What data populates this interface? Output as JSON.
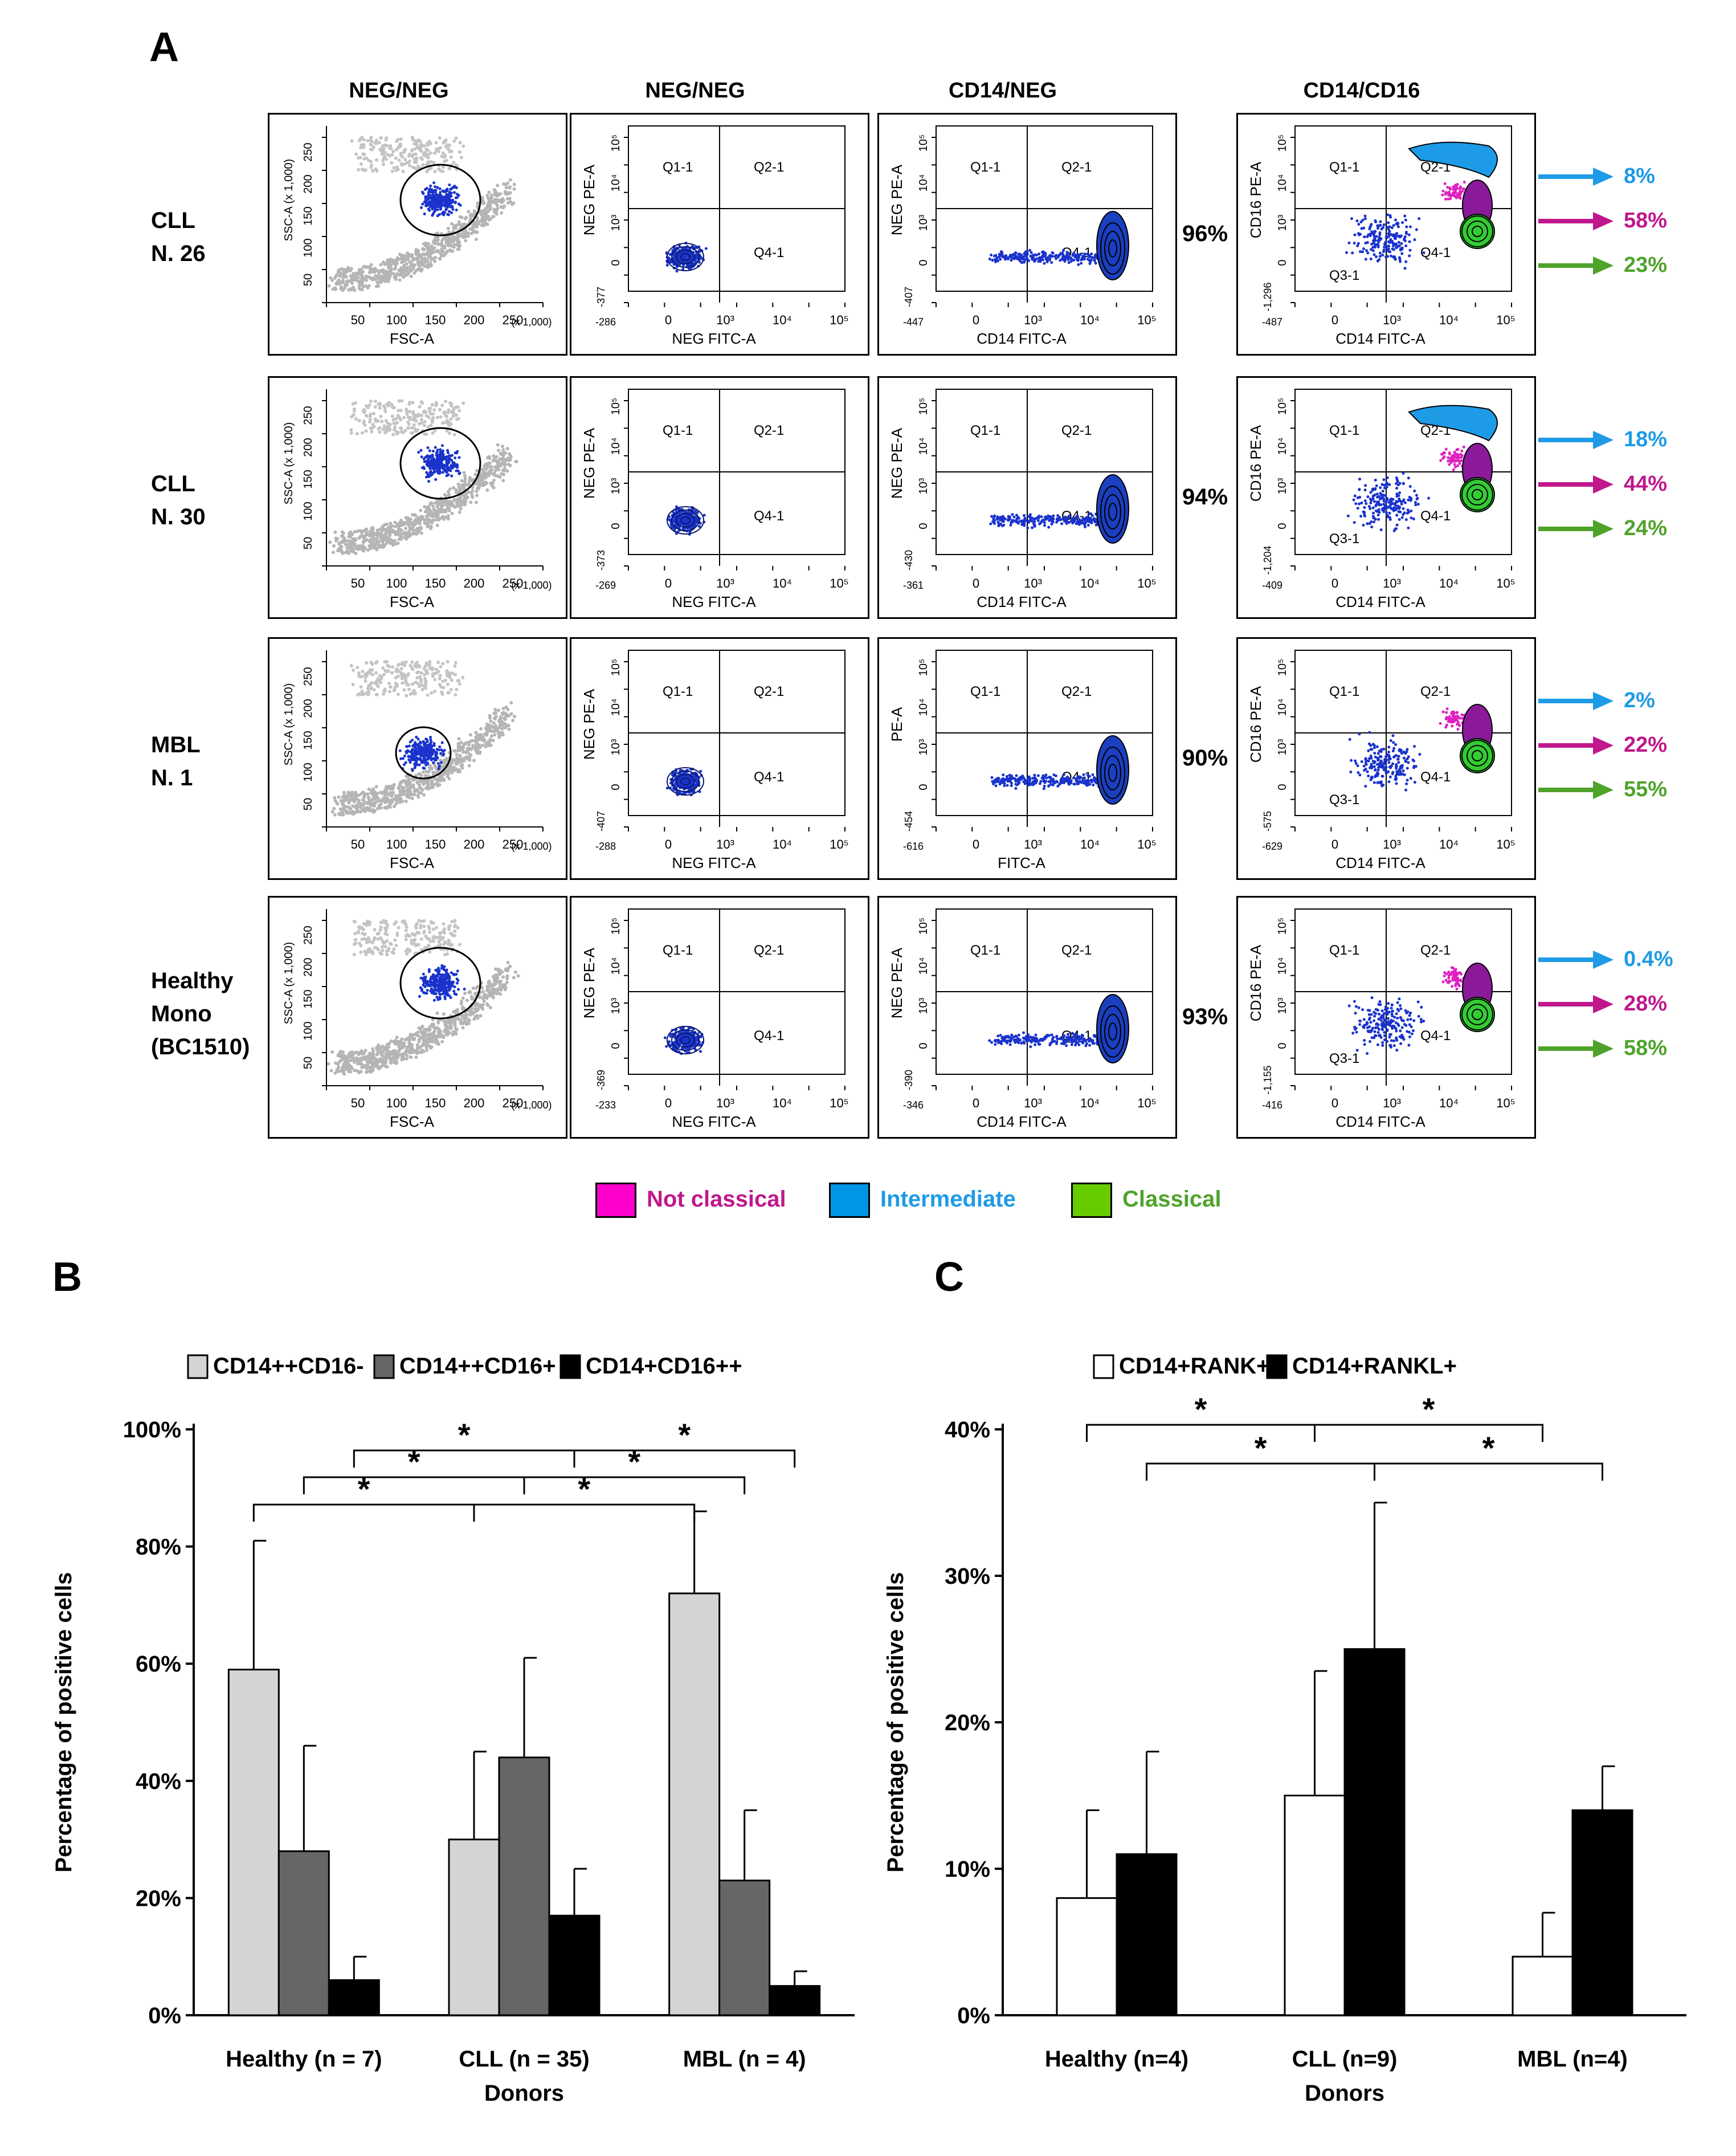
{
  "panel_a": {
    "letter": "A",
    "columns": [
      "NEG/NEG",
      "NEG/NEG",
      "CD14/NEG",
      "CD14/CD16"
    ],
    "rows": [
      {
        "label": "CLL\nN. 26",
        "gate_pct": "96%",
        "subsets": [
          "8%",
          "58%",
          "23%"
        ],
        "ticks_neg_y": "-377",
        "ticks_neg_x": "-286",
        "ticks_cd14_y": "-407",
        "ticks_cd14_x": "-447",
        "ticks_cd16_y": "-1,296",
        "ticks_cd16_x": "-487",
        "mid_ylabel": "NEG PE-A",
        "mid_xlabel": "CD14 FITC-A"
      },
      {
        "label": "CLL\nN. 30",
        "gate_pct": "94%",
        "subsets": [
          "18%",
          "44%",
          "24%"
        ],
        "ticks_neg_y": "-373",
        "ticks_neg_x": "-269",
        "ticks_cd14_y": "-430",
        "ticks_cd14_x": "-361",
        "ticks_cd16_y": "-1,204",
        "ticks_cd16_x": "-409",
        "mid_ylabel": "NEG PE-A",
        "mid_xlabel": "CD14 FITC-A"
      },
      {
        "label": "MBL\nN. 1",
        "gate_pct": "90%",
        "subsets": [
          "2%",
          "22%",
          "55%"
        ],
        "ticks_neg_y": "-407",
        "ticks_neg_x": "-288",
        "ticks_cd14_y": "-454",
        "ticks_cd14_x": "-616",
        "ticks_cd16_y": "-575",
        "ticks_cd16_x": "-629",
        "mid_ylabel": "PE-A",
        "mid_xlabel": "FITC-A"
      },
      {
        "label": "Healthy\nMono\n(BC1510)",
        "gate_pct": "93%",
        "subsets": [
          "0.4%",
          "28%",
          "58%"
        ],
        "ticks_neg_y": "-369",
        "ticks_neg_x": "-233",
        "ticks_cd14_y": "-390",
        "ticks_cd14_x": "-346",
        "ticks_cd16_y": "-1,155",
        "ticks_cd16_x": "-416",
        "mid_ylabel": "NEG PE-A",
        "mid_xlabel": "CD14 FITC-A"
      }
    ],
    "fsc": {
      "xlabel": "FSC-A",
      "ylabel": "SSC-A",
      "scale": "(x 1,000)",
      "xticks": [
        "50",
        "100",
        "150",
        "200",
        "250"
      ],
      "yticks": [
        "50",
        "100",
        "150",
        "200",
        "250"
      ],
      "yscale": "(x 1,000)"
    },
    "quad": {
      "q1": "Q1-1",
      "q2": "Q2-1",
      "q3": "Q3-1",
      "q4": "Q4-1",
      "neg_x": "NEG FITC-A",
      "neg_y": "NEG PE-A",
      "cd16_y": "CD16 PE-A",
      "cd14_x": "CD14 FITC-A",
      "x_decades": [
        "0",
        "10³",
        "10⁴",
        "10⁵"
      ],
      "y_decades": [
        "0",
        "10³",
        "10⁴",
        "10⁵"
      ]
    },
    "legend": [
      {
        "label": "Not classical",
        "color": "#ff00cc"
      },
      {
        "label": "Intermediate",
        "color": "#0096e6"
      },
      {
        "label": "Classical",
        "color": "#66cc00"
      }
    ],
    "subset_colors": [
      "#1e9be6",
      "#c0178c",
      "#4fa32a"
    ]
  },
  "chart_data": [
    {
      "panel": "B",
      "type": "bar",
      "title": "",
      "categories": [
        "Healthy (n = 7)",
        "CLL (n = 35)",
        "MBL (n = 4)"
      ],
      "series": [
        {
          "name": "CD14++CD16-",
          "values": [
            59,
            30,
            72
          ],
          "errors": [
            22,
            15,
            14
          ],
          "color": "#d4d4d4"
        },
        {
          "name": "CD14++CD16+",
          "values": [
            28,
            44,
            23
          ],
          "errors": [
            18,
            17,
            12
          ],
          "color": "#666666"
        },
        {
          "name": "CD14+CD16++",
          "values": [
            6,
            17,
            5
          ],
          "errors": [
            4,
            8,
            2.5
          ],
          "color": "#000000"
        }
      ],
      "xlabel": "Donors",
      "ylabel": "Percentage of positive cells",
      "ylim": [
        0,
        100
      ],
      "yticks": [
        "0%",
        "20%",
        "40%",
        "60%",
        "80%",
        "100%"
      ],
      "significance": [
        {
          "from": [
            0,
            0
          ],
          "to": [
            1,
            0
          ],
          "label": "*"
        },
        {
          "from": [
            0,
            1
          ],
          "to": [
            1,
            1
          ],
          "label": "*"
        },
        {
          "from": [
            0,
            2
          ],
          "to": [
            1,
            2
          ],
          "label": "*"
        },
        {
          "from": [
            1,
            0
          ],
          "to": [
            2,
            0
          ],
          "label": "*"
        },
        {
          "from": [
            1,
            1
          ],
          "to": [
            2,
            1
          ],
          "label": "*"
        },
        {
          "from": [
            1,
            2
          ],
          "to": [
            2,
            2
          ],
          "label": "*"
        }
      ]
    },
    {
      "panel": "C",
      "type": "bar",
      "title": "",
      "categories": [
        "Healthy (n=4)",
        "CLL (n=9)",
        "MBL (n=4)"
      ],
      "series": [
        {
          "name": "CD14+RANK+",
          "values": [
            8,
            15,
            4
          ],
          "errors": [
            6,
            8.5,
            3
          ],
          "color": "#ffffff"
        },
        {
          "name": "CD14+RANKL+",
          "values": [
            11,
            25,
            14
          ],
          "errors": [
            7,
            10,
            3
          ],
          "color": "#000000"
        }
      ],
      "xlabel": "Donors",
      "ylabel": "Percentage of positive cells",
      "ylim": [
        0,
        40
      ],
      "yticks": [
        "0%",
        "10%",
        "20%",
        "30%",
        "40%"
      ],
      "significance": [
        {
          "from": [
            0,
            0
          ],
          "to": [
            1,
            0
          ],
          "label": "*"
        },
        {
          "from": [
            1,
            0
          ],
          "to": [
            2,
            0
          ],
          "label": "*"
        },
        {
          "from": [
            0,
            1
          ],
          "to": [
            1,
            1
          ],
          "label": "*"
        },
        {
          "from": [
            1,
            1
          ],
          "to": [
            2,
            1
          ],
          "label": "*"
        }
      ]
    }
  ],
  "panel_b": {
    "letter": "B"
  },
  "panel_c": {
    "letter": "C"
  }
}
